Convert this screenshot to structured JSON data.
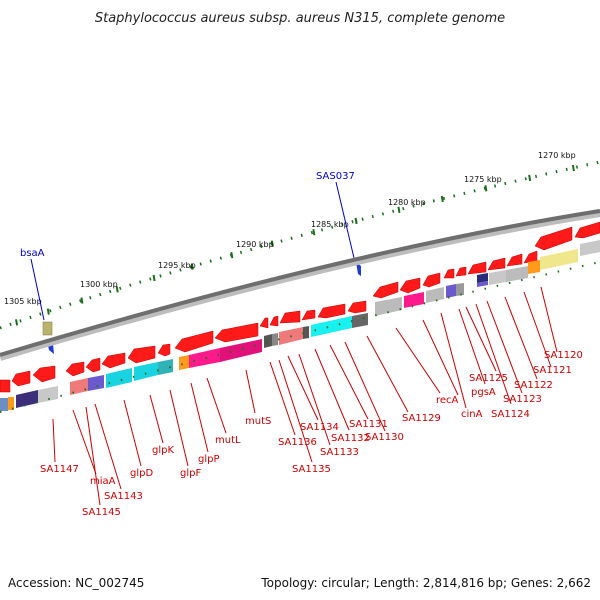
{
  "title": "Staphylococcus aureus subsp. aureus N315, complete genome",
  "footer": {
    "accession": "Accession: NC_002745",
    "topology": "Topology: circular; Length: 2,814,816 bp; Genes: 2,662"
  },
  "colors": {
    "gene_arrow": "#ff0000",
    "label_red": "#cc0000",
    "label_blue": "#0000cc",
    "backbone": "#777777",
    "tick_green": "#1a6e1a"
  },
  "scale": {
    "kbp_labels": [
      "1305 kbp",
      "1300 kbp",
      "1295 kbp",
      "1290 kbp",
      "1285 kbp",
      "1280 kbp",
      "1275 kbp",
      "1270 kbp"
    ]
  },
  "features": {
    "blue": [
      "bsaA",
      "SAS037"
    ],
    "red": [
      "SA1147",
      "miaA",
      "SA1145",
      "SA1143",
      "glpD",
      "glpK",
      "glpF",
      "glpP",
      "mutL",
      "mutS",
      "SA1136",
      "SA1135",
      "SA1134",
      "SA1133",
      "SA1132",
      "SA1131",
      "SA1130",
      "SA1129",
      "recA",
      "cinA",
      "pgsA",
      "SA1125",
      "SA1124",
      "SA1123",
      "SA1122",
      "SA1121",
      "SA1120"
    ]
  }
}
